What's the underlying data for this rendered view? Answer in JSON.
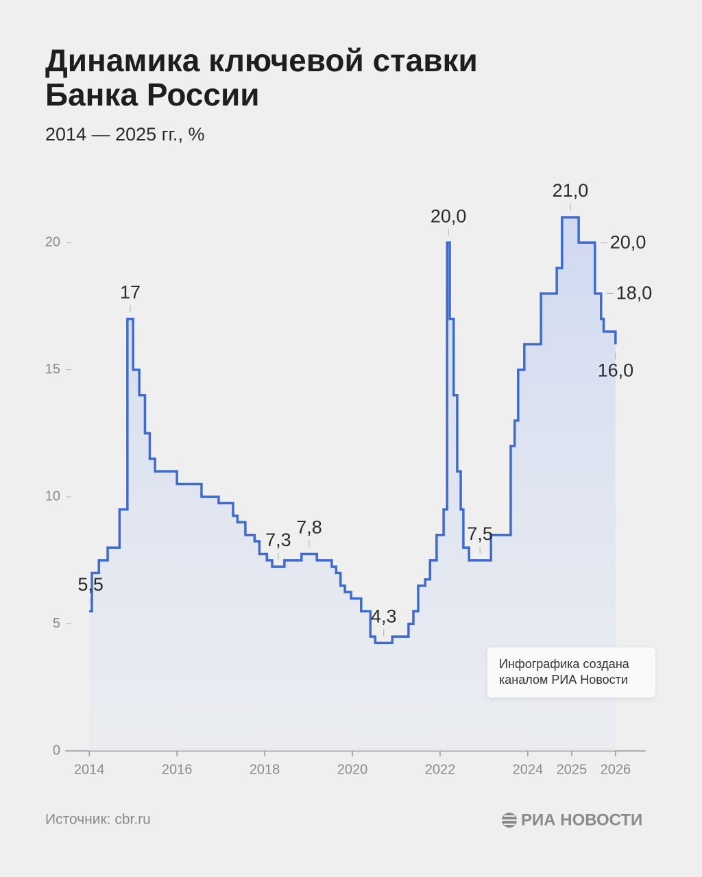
{
  "chart_data": {
    "type": "step",
    "title": [
      "Динамика ключевой ставки",
      "Банка России"
    ],
    "subtitle": "2014 — 2025 гг., %",
    "color": "#3e6bd0",
    "x": [
      2014.0,
      2014.06,
      2014.22,
      2014.42,
      2014.69,
      2014.87,
      2015.0,
      2015.14,
      2015.27,
      2015.38,
      2015.5,
      2016.0,
      2016.56,
      2016.95,
      2017.28,
      2017.38,
      2017.56,
      2017.77,
      2017.88,
      2018.05,
      2018.17,
      2018.45,
      2018.84,
      2019.19,
      2019.53,
      2019.63,
      2019.73,
      2019.83,
      2019.97,
      2020.2,
      2020.41,
      2020.52,
      2020.91,
      2021.28,
      2021.39,
      2021.5,
      2021.66,
      2021.77,
      2021.92,
      2022.08,
      2022.16,
      2022.22,
      2022.31,
      2022.39,
      2022.47,
      2022.53,
      2022.66,
      2023.16,
      2023.61,
      2023.7,
      2023.78,
      2023.92,
      2024.3,
      2024.66,
      2024.78,
      2025.16,
      2025.53,
      2025.67,
      2025.73,
      2026.0
    ],
    "values": [
      5.5,
      7,
      7.5,
      8,
      9.5,
      17,
      15,
      14,
      12.5,
      11.5,
      11,
      10.5,
      10,
      9.75,
      9.25,
      9,
      8.5,
      8.25,
      7.75,
      7.5,
      7.25,
      7.5,
      7.75,
      7.5,
      7.25,
      7,
      6.5,
      6.25,
      6,
      5.5,
      4.5,
      4.25,
      4.5,
      5,
      5.5,
      6.5,
      6.75,
      7.5,
      8.5,
      9.5,
      20,
      17,
      14,
      11,
      9.5,
      8,
      7.5,
      8.5,
      12,
      13,
      15,
      16,
      18,
      19,
      21,
      20,
      18,
      17,
      16.5,
      16
    ],
    "value_labels": [
      "5,5",
      null,
      null,
      null,
      null,
      "17",
      null,
      null,
      null,
      null,
      null,
      null,
      null,
      null,
      null,
      null,
      null,
      null,
      null,
      null,
      "7,3",
      null,
      "7,8",
      null,
      null,
      null,
      null,
      null,
      null,
      null,
      null,
      "4,3",
      null,
      null,
      null,
      null,
      null,
      null,
      null,
      null,
      "20,0",
      null,
      null,
      null,
      null,
      null,
      "7,5",
      null,
      null,
      null,
      null,
      null,
      null,
      null,
      "21,0",
      "20,0",
      "18,0",
      null,
      null,
      "16,0"
    ],
    "xlim": [
      2013.45,
      2026.69
    ],
    "ylim": [
      0,
      22
    ],
    "xticks": [
      2014,
      2016,
      2018,
      2020,
      2022,
      2024,
      2025,
      2026
    ],
    "yticks": [
      0,
      5,
      10,
      15,
      20
    ],
    "note": [
      "Инфографика создана",
      "каналом РИА Новости"
    ],
    "source": "Источник: cbr.ru",
    "brand": "РИА НОВОСТИ"
  }
}
